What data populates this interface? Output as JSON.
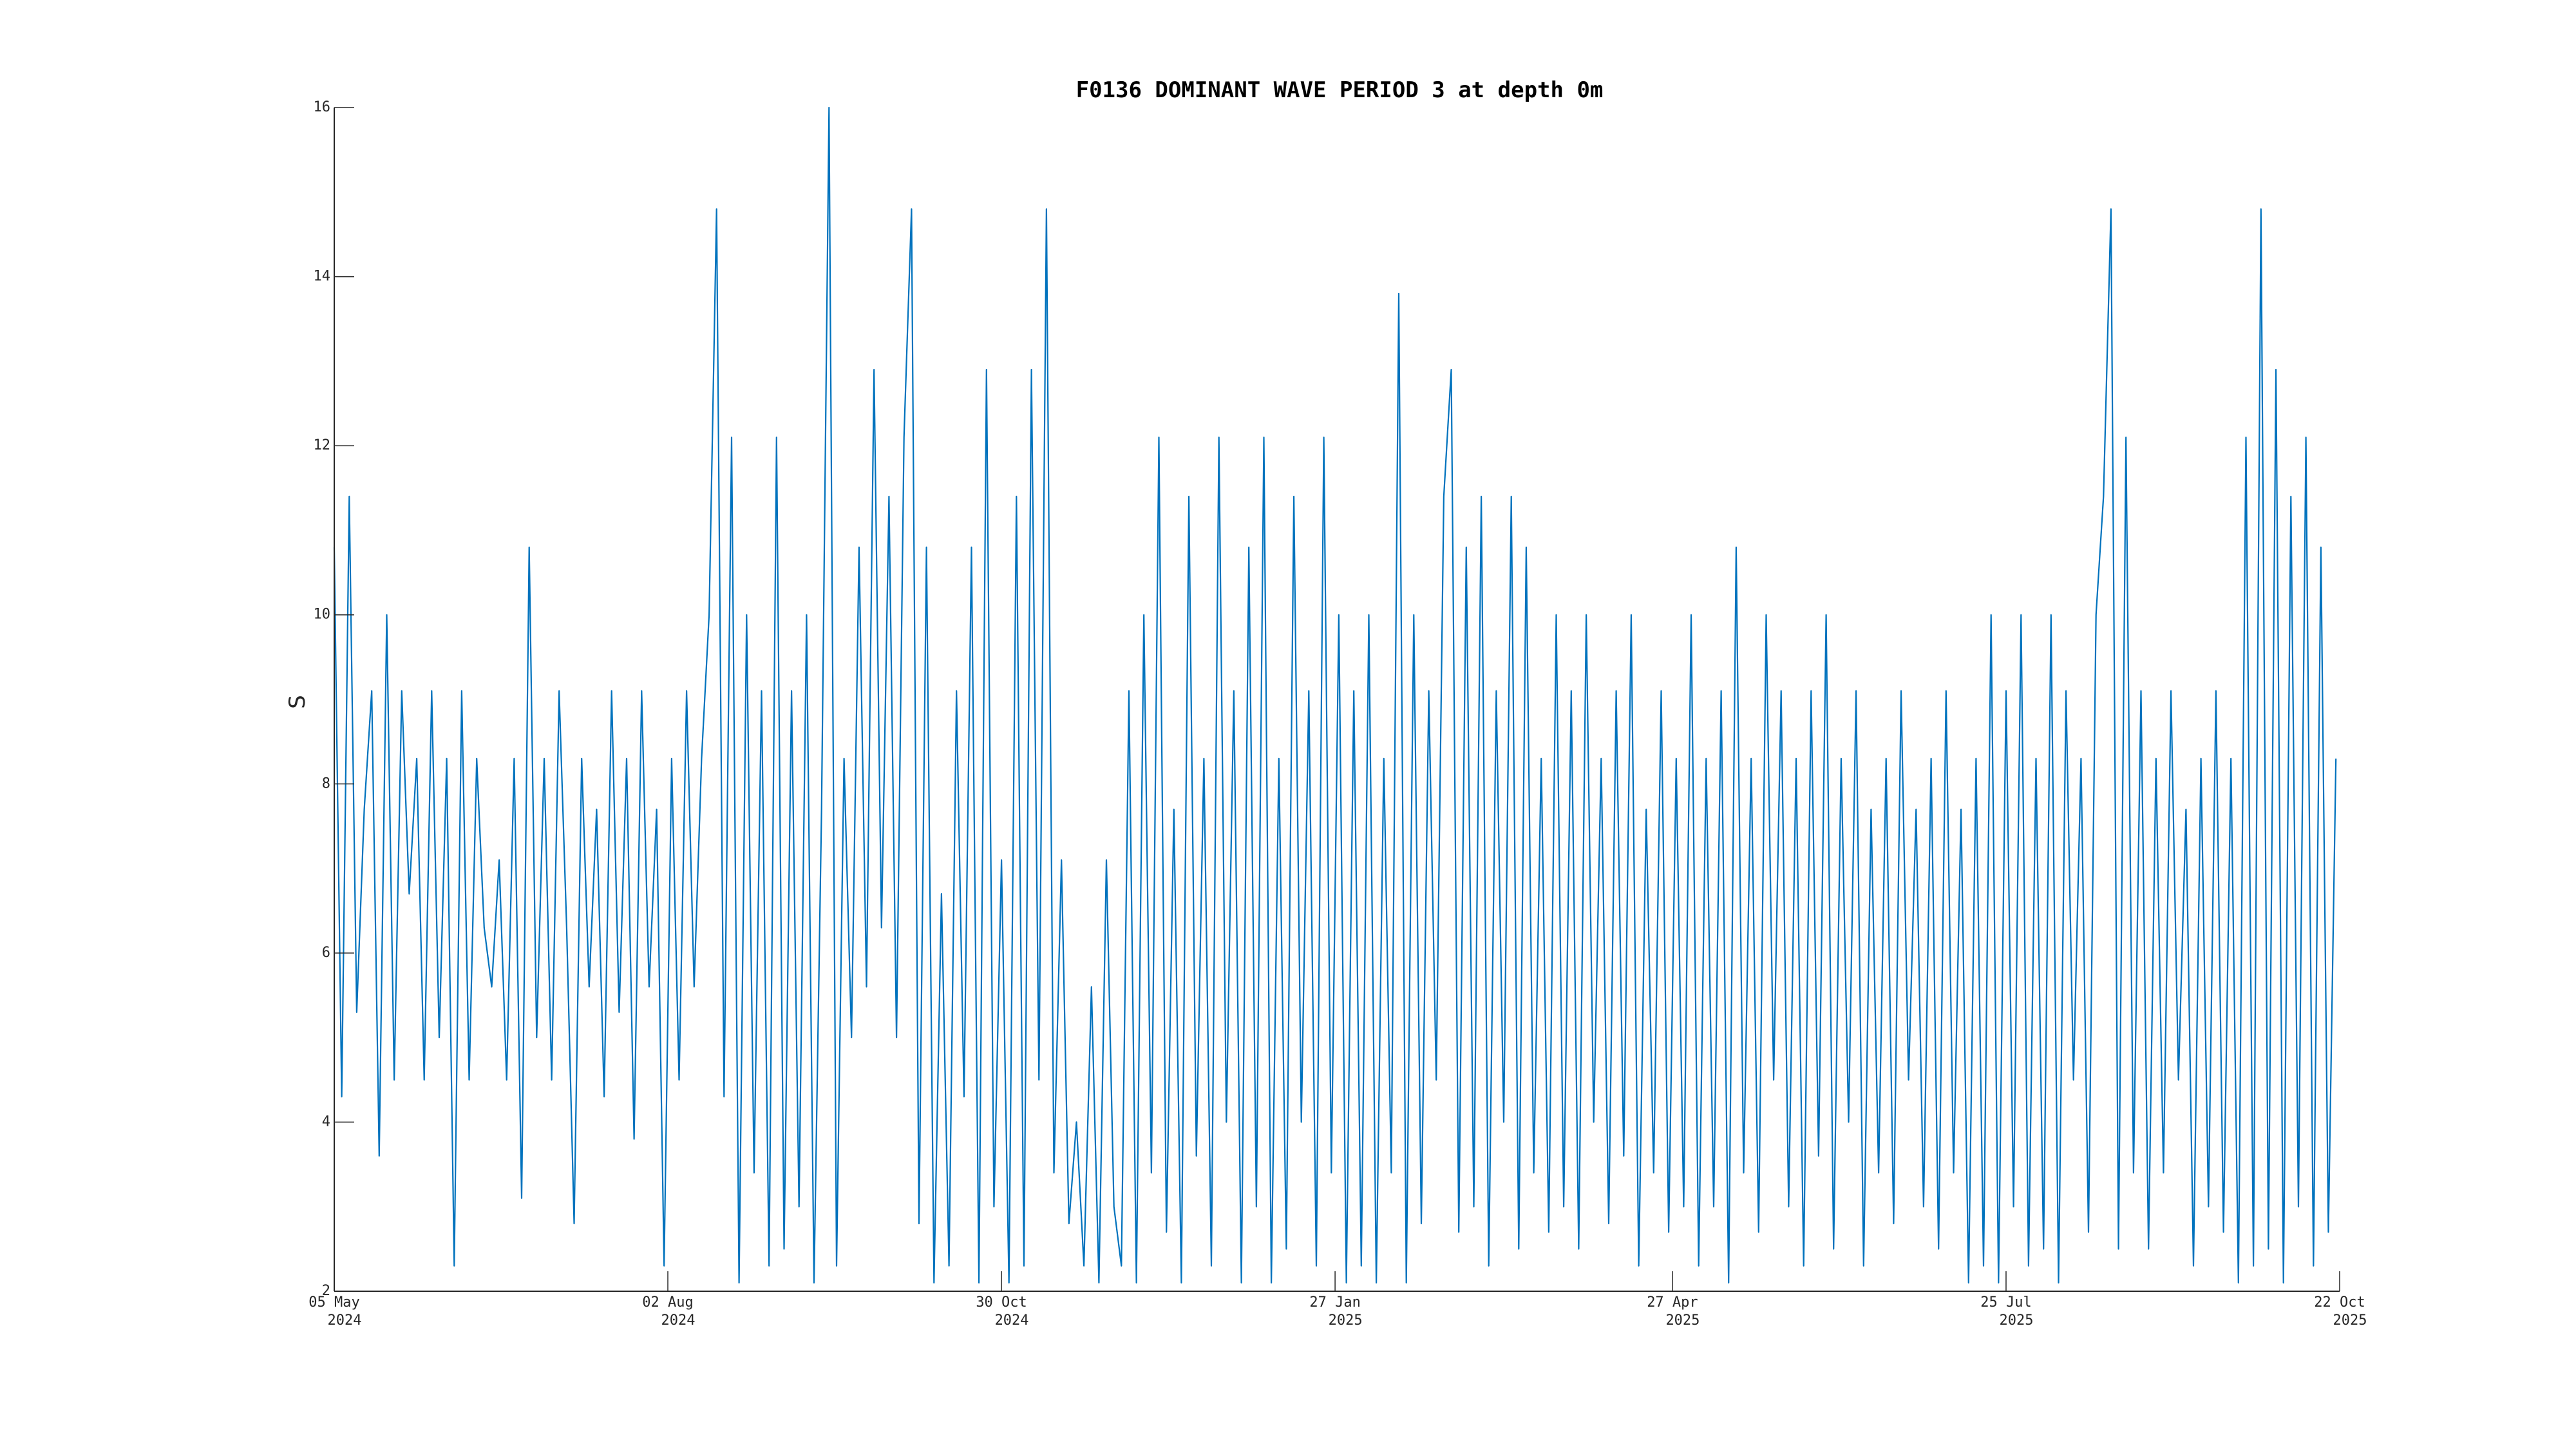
{
  "chart_data": {
    "type": "line",
    "title": "F0136 DOMINANT WAVE PERIOD 3 at depth 0m",
    "xlabel": "",
    "ylabel": "S",
    "ylim": [
      2,
      16
    ],
    "xlim": [
      "2024-05-05",
      "2025-10-22"
    ],
    "grid": false,
    "line_color": "#0072BD",
    "y_ticks": [
      2,
      4,
      6,
      8,
      10,
      12,
      14,
      16
    ],
    "x_ticks": [
      {
        "date": "2024-05-05",
        "label": "05 May",
        "year": "2024"
      },
      {
        "date": "2024-08-02",
        "label": "02 Aug",
        "year": "2024"
      },
      {
        "date": "2024-10-30",
        "label": "30 Oct",
        "year": "2024"
      },
      {
        "date": "2025-01-27",
        "label": "27 Jan",
        "year": "2025"
      },
      {
        "date": "2025-04-27",
        "label": "27 Apr",
        "year": "2025"
      },
      {
        "date": "2025-07-25",
        "label": "25 Jul",
        "year": "2025"
      },
      {
        "date": "2025-10-22",
        "label": "22 Oct",
        "year": "2025"
      }
    ],
    "x": [
      "2024-05-05",
      "2024-05-07",
      "2024-05-09",
      "2024-05-11",
      "2024-05-13",
      "2024-05-15",
      "2024-05-17",
      "2024-05-19",
      "2024-05-21",
      "2024-05-23",
      "2024-05-25",
      "2024-05-27",
      "2024-05-29",
      "2024-05-31",
      "2024-06-02",
      "2024-06-04",
      "2024-06-06",
      "2024-06-08",
      "2024-06-10",
      "2024-06-12",
      "2024-06-14",
      "2024-06-16",
      "2024-06-18",
      "2024-06-20",
      "2024-06-22",
      "2024-06-24",
      "2024-06-26",
      "2024-06-28",
      "2024-06-30",
      "2024-07-02",
      "2024-07-04",
      "2024-07-06",
      "2024-07-08",
      "2024-07-10",
      "2024-07-12",
      "2024-07-14",
      "2024-07-16",
      "2024-07-18",
      "2024-07-20",
      "2024-07-22",
      "2024-07-24",
      "2024-07-26",
      "2024-07-28",
      "2024-07-30",
      "2024-08-01",
      "2024-08-03",
      "2024-08-05",
      "2024-08-07",
      "2024-08-09",
      "2024-08-11",
      "2024-08-13",
      "2024-08-15",
      "2024-08-17",
      "2024-08-19",
      "2024-08-21",
      "2024-08-23",
      "2024-08-25",
      "2024-08-27",
      "2024-08-29",
      "2024-08-31",
      "2024-09-02",
      "2024-09-04",
      "2024-09-06",
      "2024-09-08",
      "2024-09-10",
      "2024-09-12",
      "2024-09-14",
      "2024-09-16",
      "2024-09-18",
      "2024-09-20",
      "2024-09-22",
      "2024-09-24",
      "2024-09-26",
      "2024-09-28",
      "2024-09-30",
      "2024-10-02",
      "2024-10-04",
      "2024-10-06",
      "2024-10-08",
      "2024-10-10",
      "2024-10-12",
      "2024-10-14",
      "2024-10-16",
      "2024-10-18",
      "2024-10-20",
      "2024-10-22",
      "2024-10-24",
      "2024-10-26",
      "2024-10-28",
      "2024-10-30",
      "2024-11-01",
      "2024-11-03",
      "2024-11-05",
      "2024-11-07",
      "2024-11-09",
      "2024-11-11",
      "2024-11-13",
      "2024-11-15",
      "2024-11-17",
      "2024-11-19",
      "2024-11-21",
      "2024-11-23",
      "2024-11-25",
      "2024-11-27",
      "2024-11-29",
      "2024-12-01",
      "2024-12-03",
      "2024-12-05",
      "2024-12-07",
      "2024-12-09",
      "2024-12-11",
      "2024-12-13",
      "2024-12-15",
      "2024-12-17",
      "2024-12-19",
      "2024-12-21",
      "2024-12-23",
      "2024-12-25",
      "2024-12-27",
      "2024-12-29",
      "2024-12-31",
      "2025-01-02",
      "2025-01-04",
      "2025-01-06",
      "2025-01-08",
      "2025-01-10",
      "2025-01-12",
      "2025-01-14",
      "2025-01-16",
      "2025-01-18",
      "2025-01-20",
      "2025-01-22",
      "2025-01-24",
      "2025-01-26",
      "2025-01-28",
      "2025-01-30",
      "2025-02-01",
      "2025-02-03",
      "2025-02-05",
      "2025-02-07",
      "2025-02-09",
      "2025-02-11",
      "2025-02-13",
      "2025-02-15",
      "2025-02-17",
      "2025-02-19",
      "2025-02-21",
      "2025-02-23",
      "2025-02-25",
      "2025-02-27",
      "2025-03-01",
      "2025-03-03",
      "2025-03-05",
      "2025-03-07",
      "2025-03-09",
      "2025-03-11",
      "2025-03-13",
      "2025-03-15",
      "2025-03-17",
      "2025-03-19",
      "2025-03-21",
      "2025-03-23",
      "2025-03-25",
      "2025-03-27",
      "2025-03-29",
      "2025-03-31",
      "2025-04-02",
      "2025-04-04",
      "2025-04-06",
      "2025-04-08",
      "2025-04-10",
      "2025-04-12",
      "2025-04-14",
      "2025-04-16",
      "2025-04-18",
      "2025-04-20",
      "2025-04-22",
      "2025-04-24",
      "2025-04-26",
      "2025-04-28",
      "2025-04-30",
      "2025-05-02",
      "2025-05-04",
      "2025-05-06",
      "2025-05-08",
      "2025-05-10",
      "2025-05-12",
      "2025-05-14",
      "2025-05-16",
      "2025-05-18",
      "2025-05-20",
      "2025-05-22",
      "2025-05-24",
      "2025-05-26",
      "2025-05-28",
      "2025-05-30",
      "2025-06-01",
      "2025-06-03",
      "2025-06-05",
      "2025-06-07",
      "2025-06-09",
      "2025-06-11",
      "2025-06-13",
      "2025-06-15",
      "2025-06-17",
      "2025-06-19",
      "2025-06-21",
      "2025-06-23",
      "2025-06-25",
      "2025-06-27",
      "2025-06-29",
      "2025-07-01",
      "2025-07-03",
      "2025-07-05",
      "2025-07-07",
      "2025-07-09",
      "2025-07-11",
      "2025-07-13",
      "2025-07-15",
      "2025-07-17",
      "2025-07-19",
      "2025-07-21",
      "2025-07-23",
      "2025-07-25",
      "2025-07-27",
      "2025-07-29",
      "2025-07-31",
      "2025-08-02",
      "2025-08-04",
      "2025-08-06",
      "2025-08-08",
      "2025-08-10",
      "2025-08-12",
      "2025-08-14",
      "2025-08-16",
      "2025-08-18",
      "2025-08-20",
      "2025-08-22",
      "2025-08-24",
      "2025-08-26",
      "2025-08-28",
      "2025-08-30",
      "2025-09-01",
      "2025-09-03",
      "2025-09-05",
      "2025-09-07",
      "2025-09-09",
      "2025-09-11",
      "2025-09-13",
      "2025-09-15",
      "2025-09-17",
      "2025-09-19",
      "2025-09-21",
      "2025-09-23",
      "2025-09-25",
      "2025-09-27",
      "2025-09-29",
      "2025-10-01",
      "2025-10-03",
      "2025-10-05",
      "2025-10-07",
      "2025-10-09",
      "2025-10-11",
      "2025-10-13",
      "2025-10-15",
      "2025-10-17",
      "2025-10-19",
      "2025-10-21"
    ],
    "y": [
      10.8,
      4.3,
      11.4,
      5.3,
      7.7,
      9.1,
      3.6,
      10.0,
      4.5,
      9.1,
      6.7,
      8.3,
      4.5,
      9.1,
      5.0,
      8.3,
      2.3,
      9.1,
      4.5,
      8.3,
      6.3,
      5.6,
      7.1,
      4.5,
      8.3,
      3.1,
      10.8,
      5.0,
      8.3,
      4.5,
      9.1,
      6.3,
      2.8,
      8.3,
      5.6,
      7.7,
      4.3,
      9.1,
      5.3,
      8.3,
      3.8,
      9.1,
      5.6,
      7.7,
      2.3,
      8.3,
      4.5,
      9.1,
      5.6,
      8.3,
      10.0,
      14.8,
      4.3,
      12.1,
      2.1,
      10.0,
      3.4,
      9.1,
      2.3,
      12.1,
      2.5,
      9.1,
      3.0,
      10.0,
      2.1,
      7.7,
      16.0,
      2.3,
      8.3,
      5.0,
      10.8,
      5.6,
      12.9,
      6.3,
      11.4,
      5.0,
      12.1,
      14.8,
      2.8,
      10.8,
      2.1,
      6.7,
      2.3,
      9.1,
      4.3,
      10.8,
      2.1,
      12.9,
      3.0,
      7.1,
      2.1,
      11.4,
      2.3,
      12.9,
      4.5,
      14.8,
      3.4,
      7.1,
      2.8,
      4.0,
      2.3,
      5.6,
      2.1,
      7.1,
      3.0,
      2.3,
      9.1,
      2.1,
      10.0,
      3.4,
      12.1,
      2.7,
      7.7,
      2.1,
      11.4,
      3.6,
      8.3,
      2.3,
      12.1,
      4.0,
      9.1,
      2.1,
      10.8,
      3.0,
      12.1,
      2.1,
      8.3,
      2.5,
      11.4,
      4.0,
      9.1,
      2.3,
      12.1,
      3.4,
      10.0,
      2.1,
      9.1,
      2.3,
      10.0,
      2.1,
      8.3,
      3.4,
      13.8,
      2.1,
      10.0,
      2.8,
      9.1,
      4.5,
      11.4,
      12.9,
      2.7,
      10.8,
      3.0,
      11.4,
      2.3,
      9.1,
      4.0,
      11.4,
      2.5,
      10.8,
      3.4,
      8.3,
      2.7,
      10.0,
      3.0,
      9.1,
      2.5,
      10.0,
      4.0,
      8.3,
      2.8,
      9.1,
      3.6,
      10.0,
      2.3,
      7.7,
      3.4,
      9.1,
      2.7,
      8.3,
      3.0,
      10.0,
      2.3,
      8.3,
      3.0,
      9.1,
      2.1,
      10.8,
      3.4,
      8.3,
      2.7,
      10.0,
      4.5,
      9.1,
      3.0,
      8.3,
      2.3,
      9.1,
      3.6,
      10.0,
      2.5,
      8.3,
      4.0,
      9.1,
      2.3,
      7.7,
      3.4,
      8.3,
      2.8,
      9.1,
      4.5,
      7.7,
      3.0,
      8.3,
      2.5,
      9.1,
      3.4,
      7.7,
      2.1,
      8.3,
      2.3,
      10.0,
      2.1,
      9.1,
      3.0,
      10.0,
      2.3,
      8.3,
      2.5,
      10.0,
      2.1,
      9.1,
      4.5,
      8.3,
      2.7,
      10.0,
      11.4,
      14.8,
      2.5,
      12.1,
      3.4,
      9.1,
      2.5,
      8.3,
      3.4,
      9.1,
      4.5,
      7.7,
      2.3,
      8.3,
      3.0,
      9.1,
      2.7,
      8.3,
      2.1,
      12.1,
      2.3,
      14.8,
      2.5,
      12.9,
      2.1,
      11.4,
      3.0,
      12.1,
      2.3,
      10.8,
      2.7,
      8.3
    ]
  }
}
